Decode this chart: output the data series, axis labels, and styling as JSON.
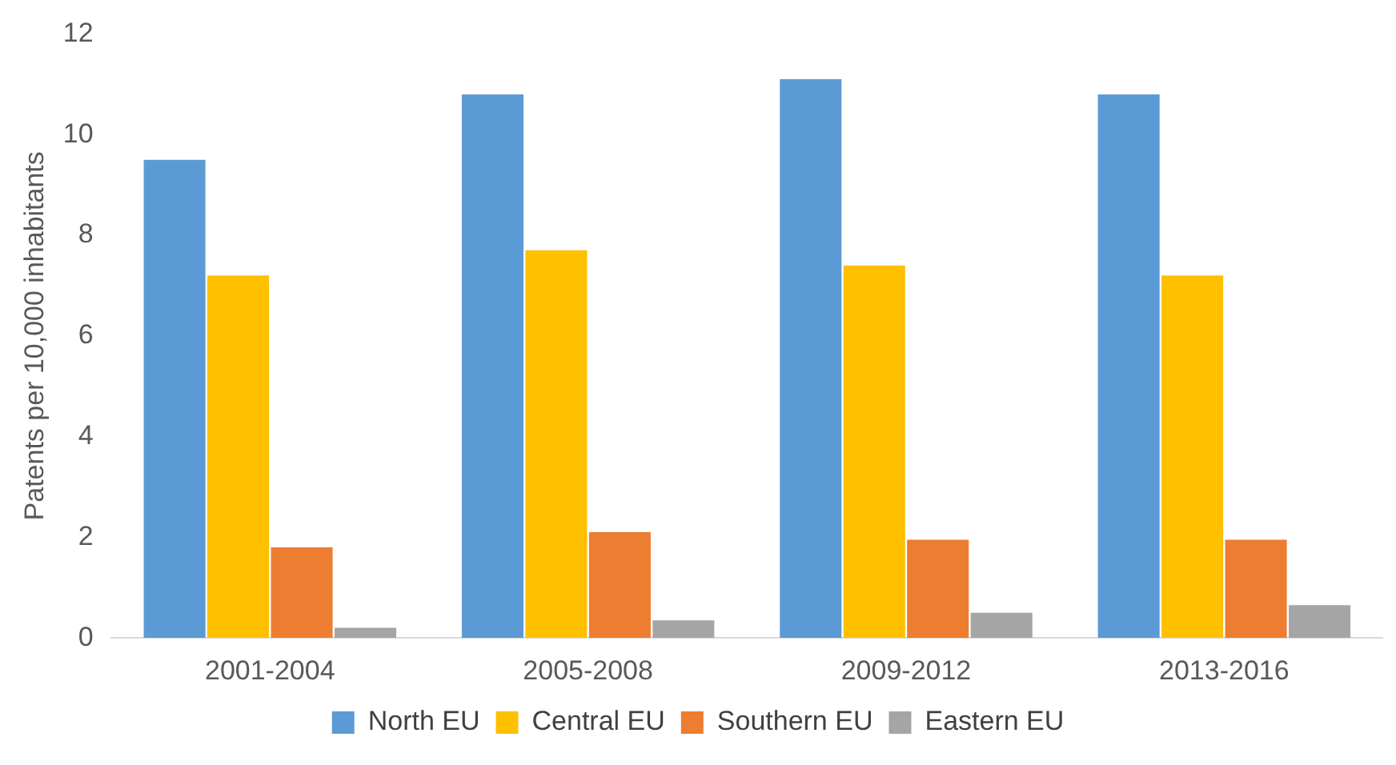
{
  "chart_data": {
    "type": "bar",
    "ylabel": "Patents per 10,000 inhabitants",
    "categories": [
      "2001-2004",
      "2005-2008",
      "2009-2012",
      "2013-2016"
    ],
    "series": [
      {
        "name": "North EU",
        "color": "#5b9bd5",
        "values": [
          9.5,
          10.8,
          11.1,
          10.8
        ]
      },
      {
        "name": "Central EU",
        "color": "#ffc000",
        "values": [
          7.2,
          7.7,
          7.4,
          7.2
        ]
      },
      {
        "name": "Southern EU",
        "color": "#ed7d31",
        "values": [
          1.8,
          2.1,
          1.95,
          1.95
        ]
      },
      {
        "name": "Eastern EU",
        "color": "#a5a5a5",
        "values": [
          0.2,
          0.35,
          0.5,
          0.65
        ]
      }
    ],
    "ylim": [
      0,
      12
    ],
    "yticks": [
      0,
      2,
      4,
      6,
      8,
      10,
      12
    ],
    "grid": false,
    "legend": "bottom"
  }
}
